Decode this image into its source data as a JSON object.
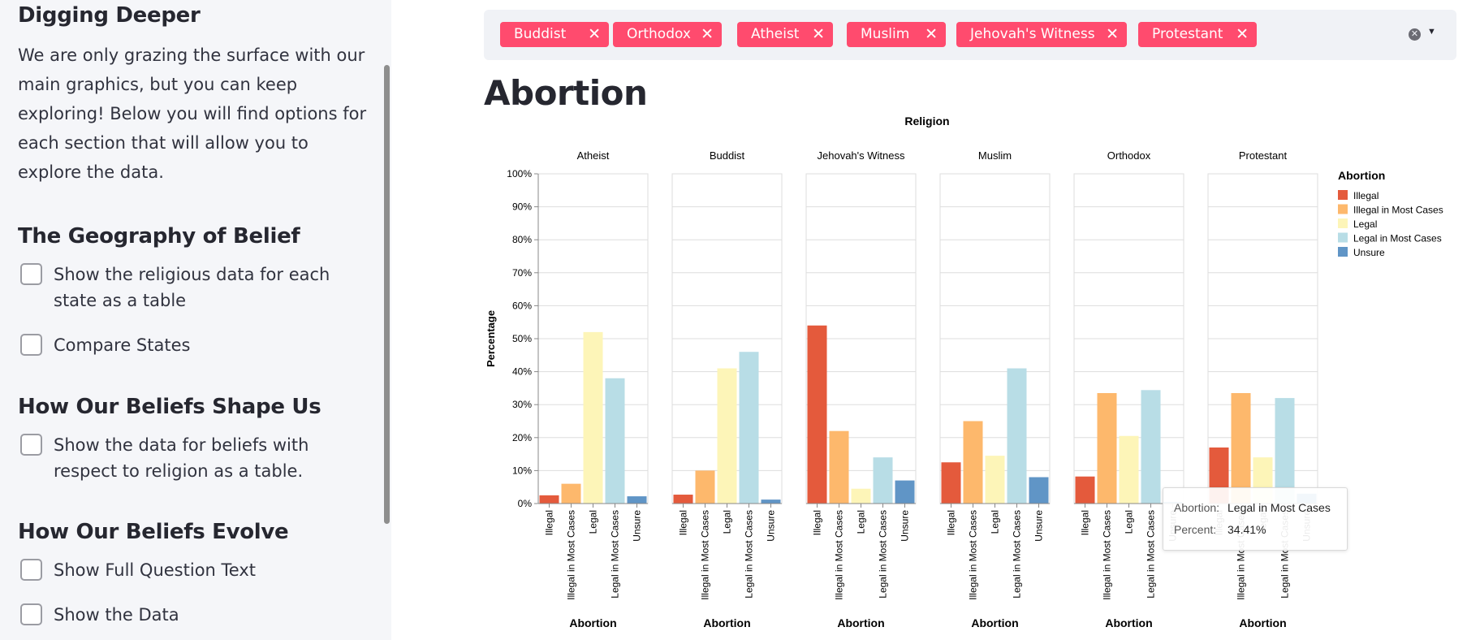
{
  "sidebar": {
    "title": "Digging Deeper",
    "intro": "We are only grazing the surface with our main graphics, but you can keep exploring! Below you will find options for each section that will allow you to explore the data.",
    "sections": [
      {
        "heading": "The Geography of Belief",
        "options": [
          "Show the religious data for each state as a table",
          "Compare States"
        ]
      },
      {
        "heading": "How Our Beliefs Shape Us",
        "options": [
          "Show the data for beliefs with respect to religion as a table."
        ]
      },
      {
        "heading": "How Our Beliefs Evolve",
        "options": [
          "Show Full Question Text",
          "Show the Data"
        ]
      }
    ]
  },
  "multiselect": {
    "tags": [
      "Buddist",
      "Orthodox",
      "Atheist",
      "Muslim",
      "Jehovah's Witness",
      "Protestant"
    ],
    "remove_glyph": "✕",
    "clear_glyph": "✕",
    "dropdown_glyph": "▼"
  },
  "main": {
    "title": "Abortion"
  },
  "chart_data": {
    "type": "bar",
    "facet_title": "Religion",
    "facets": [
      "Atheist",
      "Buddist",
      "Jehovah's Witness",
      "Muslim",
      "Orthodox",
      "Protestant"
    ],
    "categories": [
      "Illegal",
      "Illegal in Most Cases",
      "Legal",
      "Legal in Most Cases",
      "Unsure"
    ],
    "xlabel": "Abortion",
    "ylabel": "Percentage",
    "yticks": [
      "0%",
      "10%",
      "20%",
      "30%",
      "40%",
      "50%",
      "60%",
      "70%",
      "80%",
      "90%",
      "100%"
    ],
    "ylim": [
      0,
      100
    ],
    "grid": true,
    "values": [
      [
        2.5,
        6,
        52,
        38,
        2.2
      ],
      [
        2.7,
        10,
        41,
        46,
        1.2
      ],
      [
        54,
        22,
        4.5,
        14,
        7
      ],
      [
        12.5,
        25,
        14.5,
        41,
        8
      ],
      [
        8.2,
        33.5,
        20.5,
        34.41,
        0.5
      ],
      [
        17,
        33.5,
        14,
        32,
        3
      ]
    ],
    "legend": {
      "title": "Abortion",
      "position": "right",
      "items": [
        {
          "label": "Illegal",
          "color": "#e45a3c"
        },
        {
          "label": "Illegal in Most Cases",
          "color": "#fdb86c"
        },
        {
          "label": "Legal",
          "color": "#fdf5b8"
        },
        {
          "label": "Legal in Most Cases",
          "color": "#b8dde6"
        },
        {
          "label": "Unsure",
          "color": "#6095c6"
        }
      ]
    }
  },
  "tooltip": {
    "rows": [
      {
        "key": "Abortion:",
        "value": "Legal in Most Cases"
      },
      {
        "key": "Percent:",
        "value": "34.41%"
      }
    ]
  },
  "colors": {
    "accent": "#ff4b6e",
    "sidebar_bg": "#f5f6f9"
  }
}
